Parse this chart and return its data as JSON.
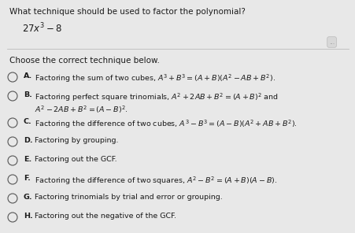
{
  "background_color": "#e8e8e8",
  "title_text": "What technique should be used to factor the polynomial?",
  "instruction": "Choose the correct technique below.",
  "options": [
    {
      "label": "A.",
      "line1": "Factoring the sum of two cubes, $A^3+B^3=(A+B)\\left(A^2-AB+B^2\\right)$.",
      "line2": null
    },
    {
      "label": "B.",
      "line1": "Factoring perfect square trinomials, $A^2+2AB+B^2=(A+B)^2$ and $A^2-2AB+B^2=(A-B)^2$.",
      "line2": null
    },
    {
      "label": "C.",
      "line1": "Factoring the difference of two cubes, $A^3-B^3=(A-B)\\left(A^2+AB+B^2\\right)$.",
      "line2": null
    },
    {
      "label": "D.",
      "line1": "Factoring by grouping.",
      "line2": null
    },
    {
      "label": "E.",
      "line1": "Factoring out the GCF.",
      "line2": null
    },
    {
      "label": "F.",
      "line1": "Factoring the difference of two squares, $A^2-B^2=(A+B)(A-B)$.",
      "line2": null
    },
    {
      "label": "G.",
      "line1": "Factoring trinomials by trial and error or grouping.",
      "line2": null
    },
    {
      "label": "H.",
      "line1": "Factoring out the negative of the GCF.",
      "line2": null
    }
  ],
  "font_size_title": 7.5,
  "font_size_poly": 8.5,
  "font_size_instruction": 7.5,
  "font_size_options": 6.8,
  "text_color": "#1a1a1a",
  "circle_color": "#555555",
  "divider_color": "#bbbbbb",
  "dots_color": "#888888"
}
